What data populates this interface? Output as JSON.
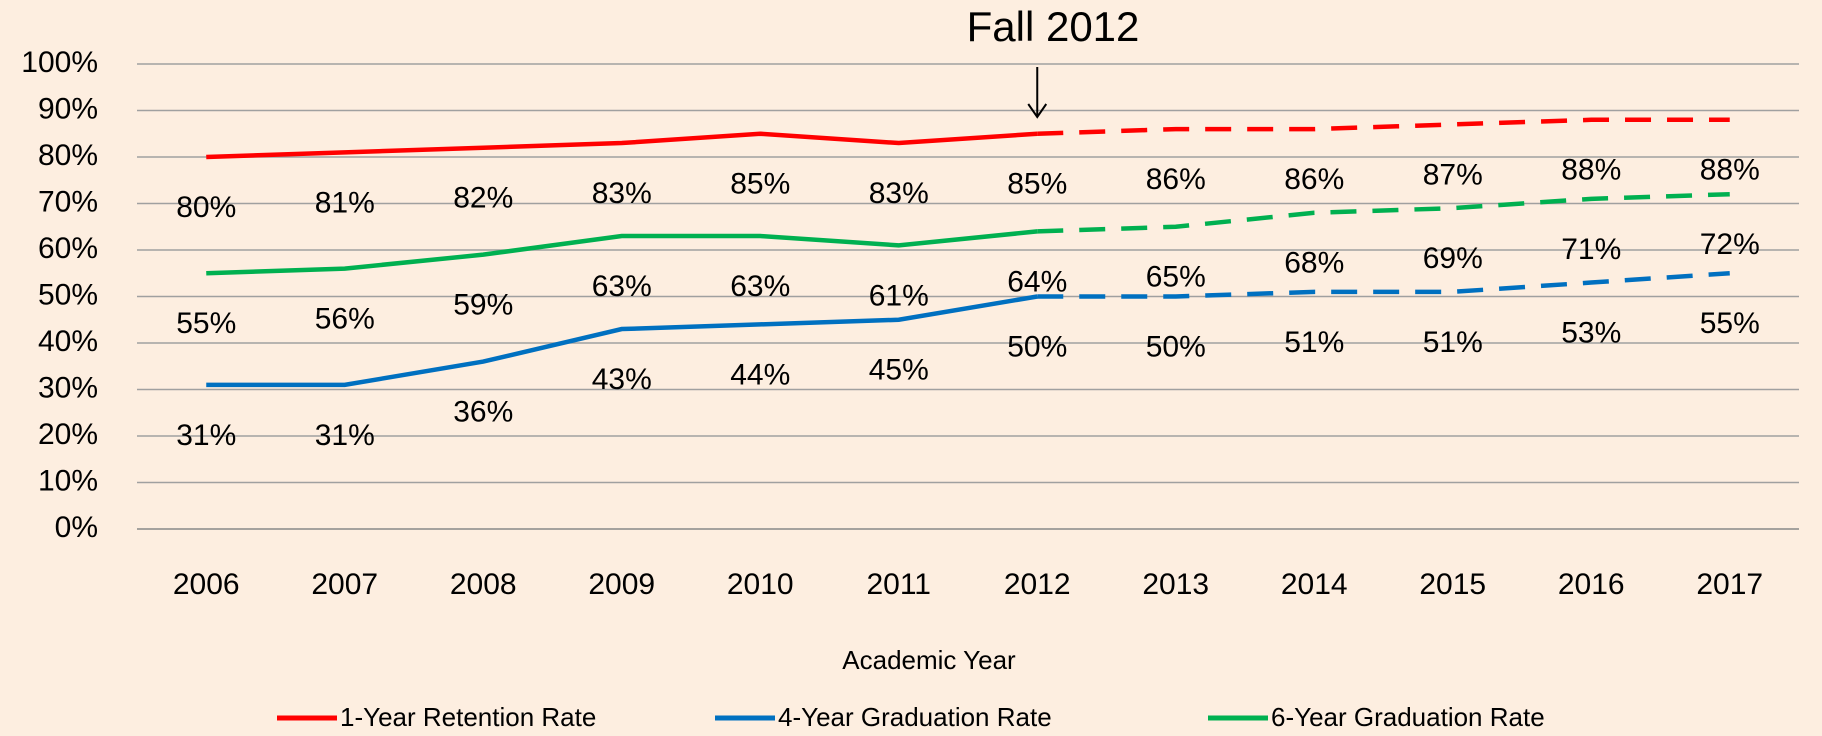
{
  "chart_data": {
    "type": "line",
    "annotation": {
      "text": "Fall 2012",
      "x": "2012"
    },
    "x_label": "Academic Year",
    "categories": [
      "2006",
      "2007",
      "2008",
      "2009",
      "2010",
      "2011",
      "2012",
      "2013",
      "2014",
      "2015",
      "2016",
      "2017"
    ],
    "series": [
      {
        "name": "1-Year Retention Rate",
        "color": "#ff0000",
        "values": [
          80,
          81,
          82,
          83,
          85,
          83,
          85,
          86,
          86,
          87,
          88,
          88
        ],
        "value_labels": [
          "80%",
          "81%",
          "82%",
          "83%",
          "85%",
          "83%",
          "85%",
          "86%",
          "86%",
          "87%",
          "88%",
          "88%"
        ]
      },
      {
        "name": "4-Year Graduation Rate",
        "color": "#0070c0",
        "values": [
          31,
          31,
          36,
          43,
          44,
          45,
          50,
          50,
          51,
          51,
          53,
          55
        ],
        "value_labels": [
          "31%",
          "31%",
          "36%",
          "43%",
          "44%",
          "45%",
          "50%",
          "50%",
          "51%",
          "51%",
          "53%",
          "55%"
        ]
      },
      {
        "name": "6-Year Graduation Rate",
        "color": "#00b050",
        "values": [
          55,
          56,
          59,
          63,
          63,
          61,
          64,
          65,
          68,
          69,
          71,
          72
        ],
        "value_labels": [
          "55%",
          "56%",
          "59%",
          "63%",
          "63%",
          "61%",
          "64%",
          "65%",
          "68%",
          "69%",
          "71%",
          "72%"
        ]
      }
    ],
    "ylim": [
      0,
      100
    ],
    "yticks": [
      {
        "value": 0,
        "label": "0%"
      },
      {
        "value": 10,
        "label": "10%"
      },
      {
        "value": 20,
        "label": "20%"
      },
      {
        "value": 30,
        "label": "30%"
      },
      {
        "value": 40,
        "label": "40%"
      },
      {
        "value": 50,
        "label": "50%"
      },
      {
        "value": 60,
        "label": "60%"
      },
      {
        "value": 70,
        "label": "70%"
      },
      {
        "value": 80,
        "label": "80%"
      },
      {
        "value": 90,
        "label": "90%"
      },
      {
        "value": 100,
        "label": "100%"
      }
    ],
    "grid": true,
    "legend": "bottom"
  }
}
